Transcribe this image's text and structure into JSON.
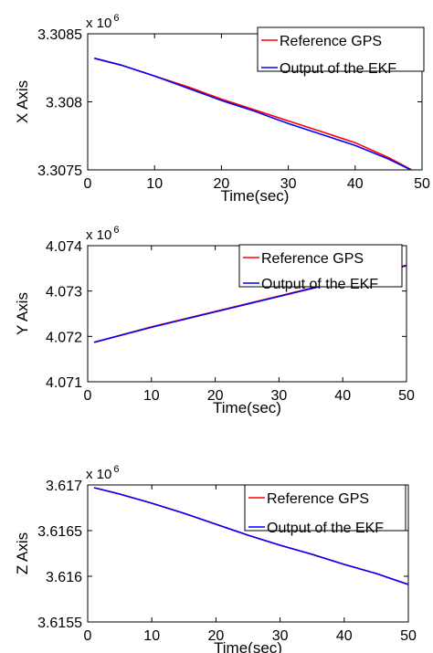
{
  "colors": {
    "reference": "#ff0000",
    "ekf": "#0000ff",
    "axes": "#000000"
  },
  "chart_data": [
    {
      "type": "line",
      "xlabel": "Time(sec)",
      "ylabel": "X Axis",
      "multiplier": "x 10",
      "multiplier_exp": "6",
      "xlim": [
        0,
        50
      ],
      "ylim": [
        3.3075,
        3.3085
      ],
      "xticks": [
        0,
        10,
        20,
        30,
        40,
        50
      ],
      "xtick_labels": [
        "0",
        "10",
        "20",
        "30",
        "40",
        "50"
      ],
      "yticks": [
        3.3075,
        3.308,
        3.3085
      ],
      "ytick_labels": [
        "3.3075",
        "3.308",
        "3.3085"
      ],
      "legend_position": "top-right",
      "series": [
        {
          "name": "Reference GPS",
          "color": "#ff0000",
          "x": [
            1,
            5,
            10,
            15,
            20,
            25,
            30,
            35,
            40,
            45,
            50
          ],
          "y": [
            3.30832,
            3.30827,
            3.30819,
            3.30811,
            3.30802,
            3.30794,
            3.30786,
            3.30778,
            3.3077,
            3.30759,
            3.30746
          ]
        },
        {
          "name": "Output of the EKF",
          "color": "#0000ff",
          "x": [
            1,
            5,
            10,
            15,
            20,
            25,
            30,
            35,
            40,
            45,
            50
          ],
          "y": [
            3.30832,
            3.30827,
            3.30819,
            3.3081,
            3.30801,
            3.30793,
            3.30784,
            3.30776,
            3.30768,
            3.30758,
            3.30746
          ]
        }
      ]
    },
    {
      "type": "line",
      "xlabel": "Time(sec)",
      "ylabel": "Y Axis",
      "multiplier": "x 10",
      "multiplier_exp": "6",
      "xlim": [
        0,
        50
      ],
      "ylim": [
        4.071,
        4.074
      ],
      "xticks": [
        0,
        10,
        20,
        30,
        40,
        50
      ],
      "xtick_labels": [
        "0",
        "10",
        "20",
        "30",
        "40",
        "50"
      ],
      "yticks": [
        4.071,
        4.072,
        4.073,
        4.074
      ],
      "ytick_labels": [
        "4.071",
        "4.072",
        "4.073",
        "4.074"
      ],
      "legend_position": "top-right",
      "series": [
        {
          "name": "Reference GPS",
          "color": "#ff0000",
          "x": [
            1,
            10,
            20,
            30,
            40,
            50
          ],
          "y": [
            4.07187,
            4.07221,
            4.07255,
            4.07289,
            4.07323,
            4.07357
          ]
        },
        {
          "name": "Output of the EKF",
          "color": "#0000ff",
          "x": [
            1,
            10,
            20,
            30,
            40,
            50
          ],
          "y": [
            4.07187,
            4.0722,
            4.07254,
            4.07288,
            4.07322,
            4.07356
          ]
        }
      ]
    },
    {
      "type": "line",
      "xlabel": "Time(sec)",
      "ylabel": "Z Axis",
      "multiplier": "x 10",
      "multiplier_exp": "6",
      "xlim": [
        0,
        50
      ],
      "ylim": [
        3.6155,
        3.617
      ],
      "xticks": [
        0,
        10,
        20,
        30,
        40,
        50
      ],
      "xtick_labels": [
        "0",
        "10",
        "20",
        "30",
        "40",
        "50"
      ],
      "yticks": [
        3.6155,
        3.616,
        3.6165,
        3.617
      ],
      "ytick_labels": [
        "3.6155",
        "3.616",
        "3.6165",
        "3.617"
      ],
      "legend_position": "top-right",
      "series": [
        {
          "name": "Reference GPS",
          "color": "#ff0000",
          "x": [
            1,
            5,
            10,
            15,
            20,
            25,
            30,
            35,
            40,
            45,
            50
          ],
          "y": [
            3.61697,
            3.6169,
            3.6168,
            3.61669,
            3.61657,
            3.61645,
            3.61634,
            3.61624,
            3.61613,
            3.61603,
            3.61591
          ]
        },
        {
          "name": "Output of the EKF",
          "color": "#0000ff",
          "x": [
            1,
            5,
            10,
            15,
            20,
            25,
            30,
            35,
            40,
            45,
            50
          ],
          "y": [
            3.61697,
            3.6169,
            3.6168,
            3.61669,
            3.61657,
            3.61645,
            3.61634,
            3.61624,
            3.61613,
            3.61603,
            3.61591
          ]
        }
      ]
    }
  ]
}
